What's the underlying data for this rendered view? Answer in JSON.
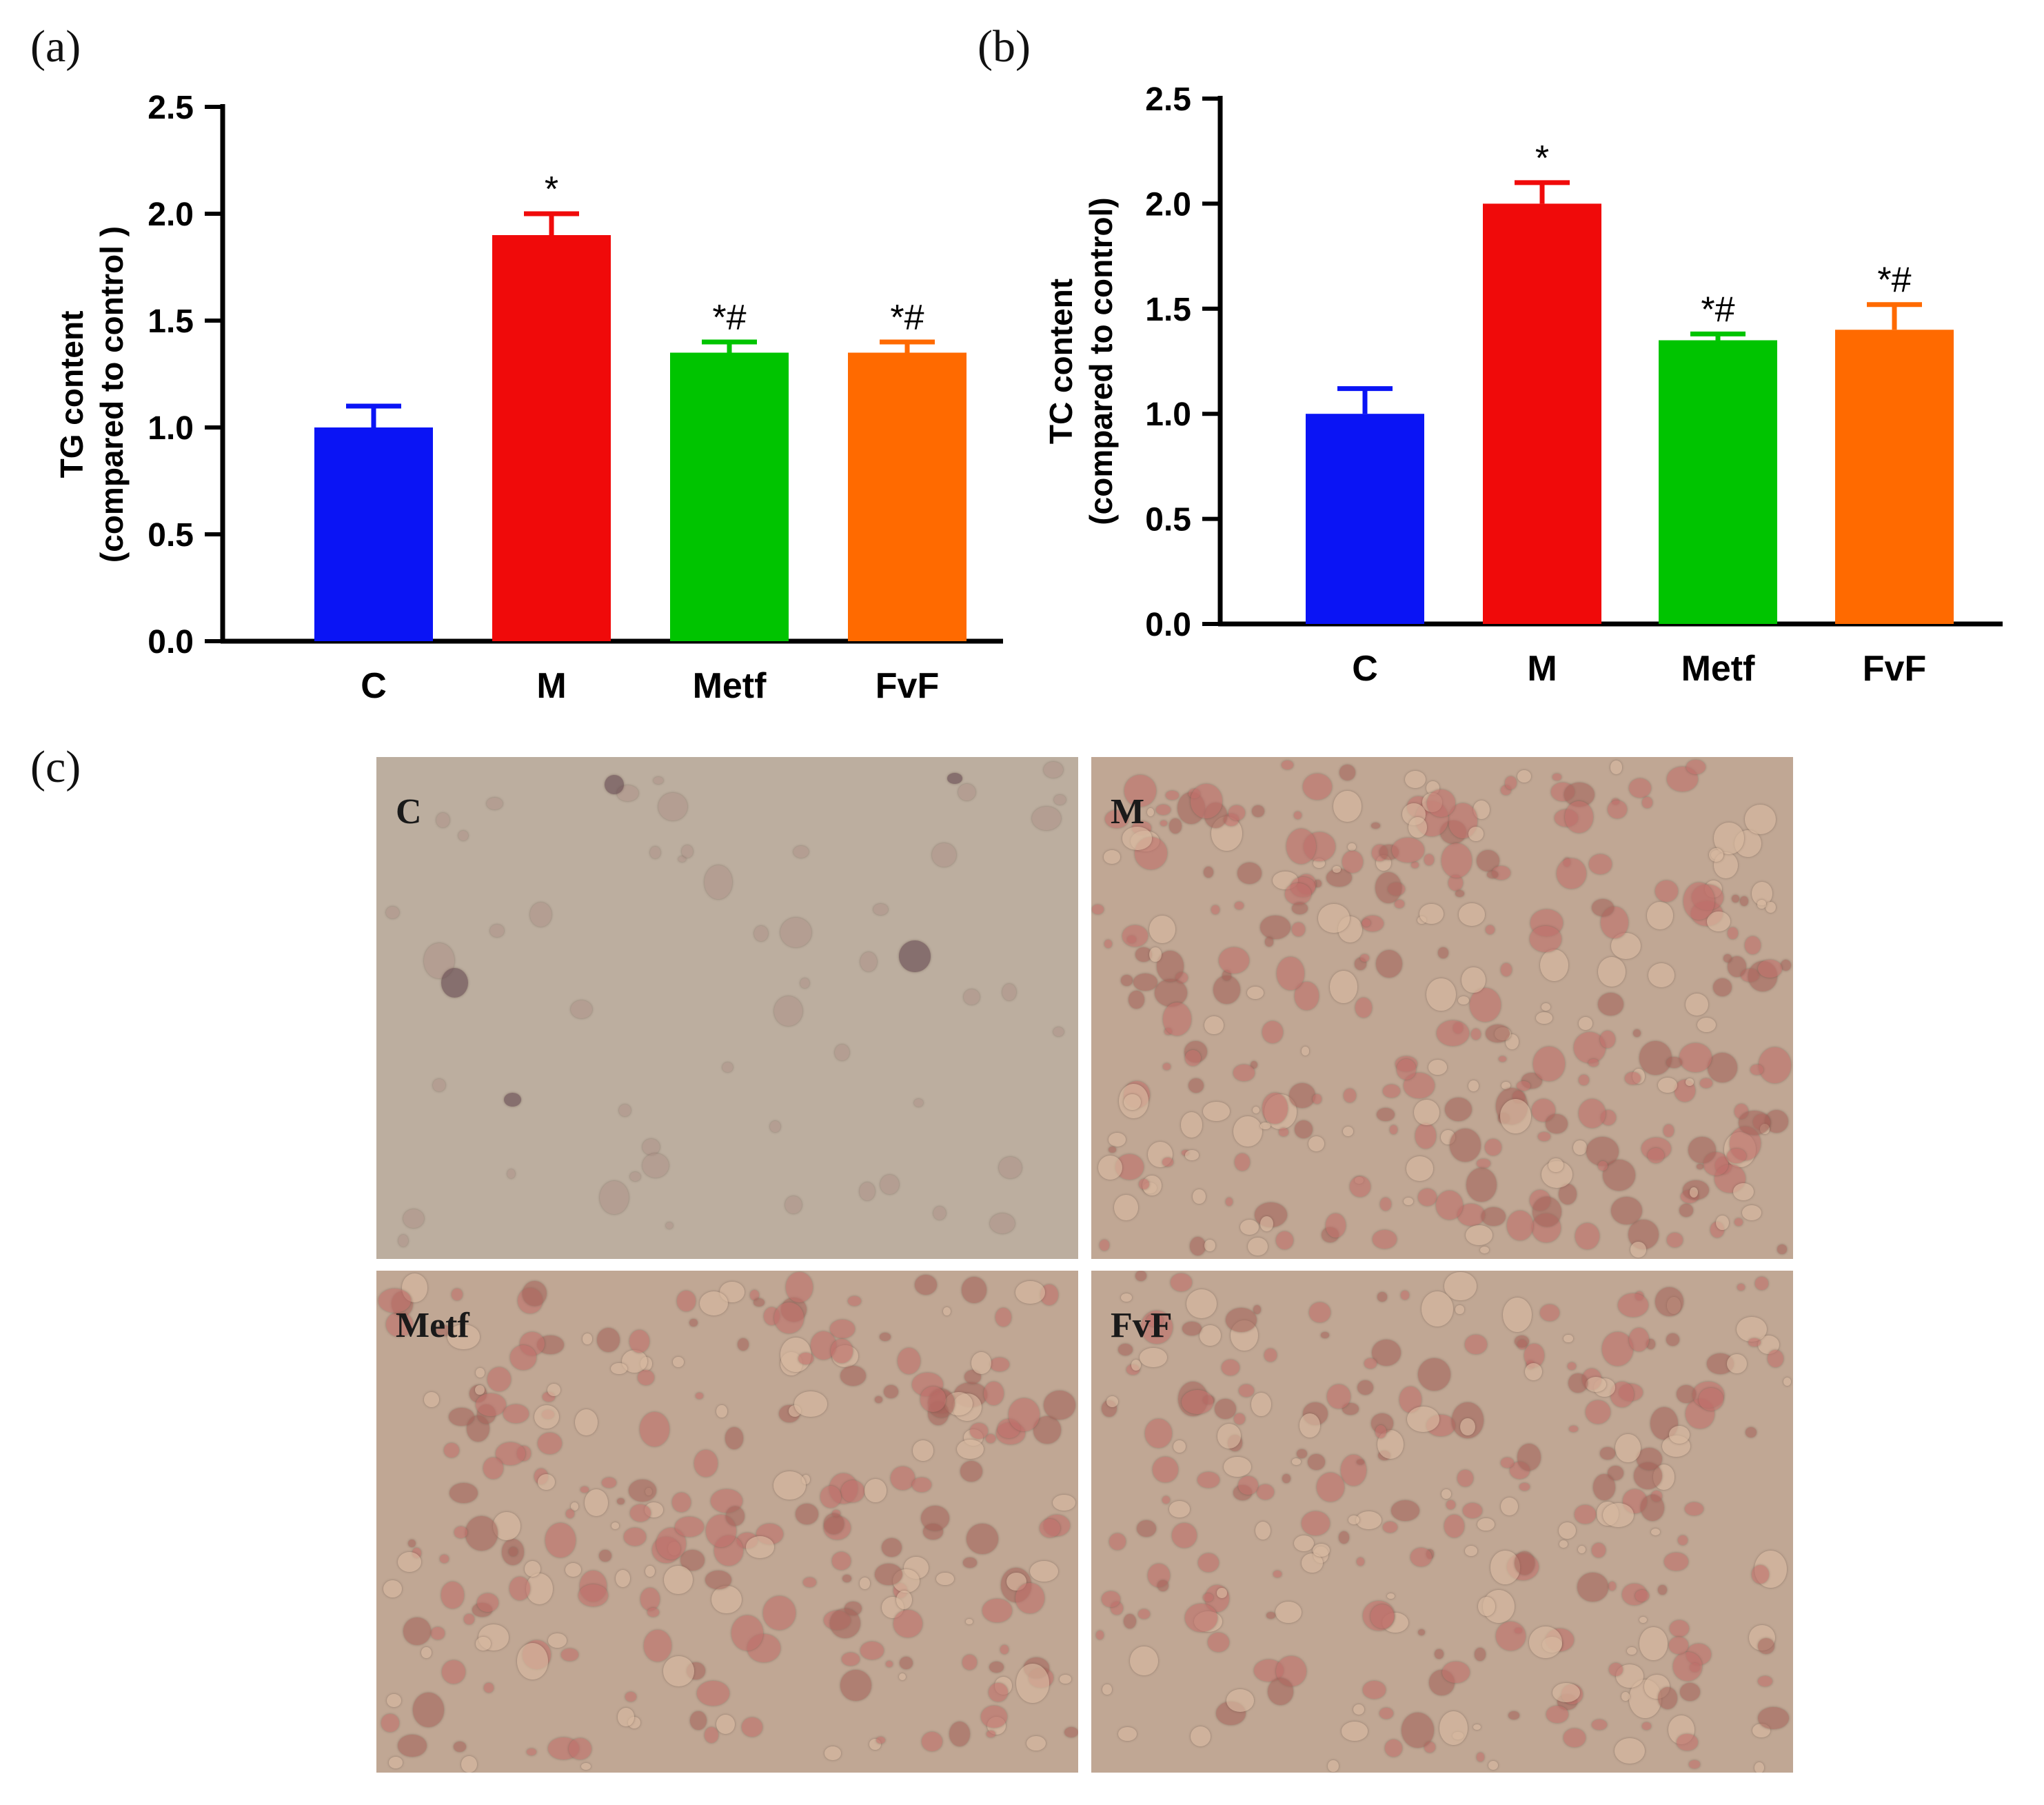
{
  "panels": {
    "a_label": "(a)",
    "b_label": "(b)",
    "c_label": "(c)"
  },
  "chart_data": [
    {
      "type": "bar",
      "panel": "(a)",
      "categories": [
        "C",
        "M",
        "Metf",
        "FvF"
      ],
      "values": [
        1.0,
        1.9,
        1.35,
        1.35
      ],
      "errors": [
        0.1,
        0.1,
        0.05,
        0.05
      ],
      "annotations": [
        "",
        "*",
        "*#",
        "*#"
      ],
      "colors": [
        "#0a14f5",
        "#f00a0a",
        "#00c400",
        "#ff6a00"
      ],
      "ylabel_line1": "TG content",
      "ylabel_line2": "(compared to control )",
      "ylim": [
        0,
        2.5
      ],
      "yticks": [
        "0.0",
        "0.5",
        "1.0",
        "1.5",
        "2.0",
        "2.5"
      ],
      "ytick_values": [
        0,
        0.5,
        1.0,
        1.5,
        2.0,
        2.5
      ]
    },
    {
      "type": "bar",
      "panel": "(b)",
      "categories": [
        "C",
        "M",
        "Metf",
        "FvF"
      ],
      "values": [
        1.0,
        2.0,
        1.35,
        1.4
      ],
      "errors": [
        0.12,
        0.1,
        0.03,
        0.12
      ],
      "annotations": [
        "",
        "*",
        "*#",
        "*#"
      ],
      "colors": [
        "#0a14f5",
        "#f00a0a",
        "#00c400",
        "#ff6a00"
      ],
      "ylabel_line1": "TC content",
      "ylabel_line2": "(compared to control)",
      "ylim": [
        0,
        2.5
      ],
      "yticks": [
        "0.0",
        "0.5",
        "1.0",
        "1.5",
        "2.0",
        "2.5"
      ],
      "ytick_values": [
        0,
        0.5,
        1.0,
        1.5,
        2.0,
        2.5
      ]
    }
  ],
  "micrographs": [
    {
      "label": "C",
      "density": "low"
    },
    {
      "label": "M",
      "density": "high"
    },
    {
      "label": "Metf",
      "density": "medium"
    },
    {
      "label": "FvF",
      "density": "medium"
    }
  ]
}
